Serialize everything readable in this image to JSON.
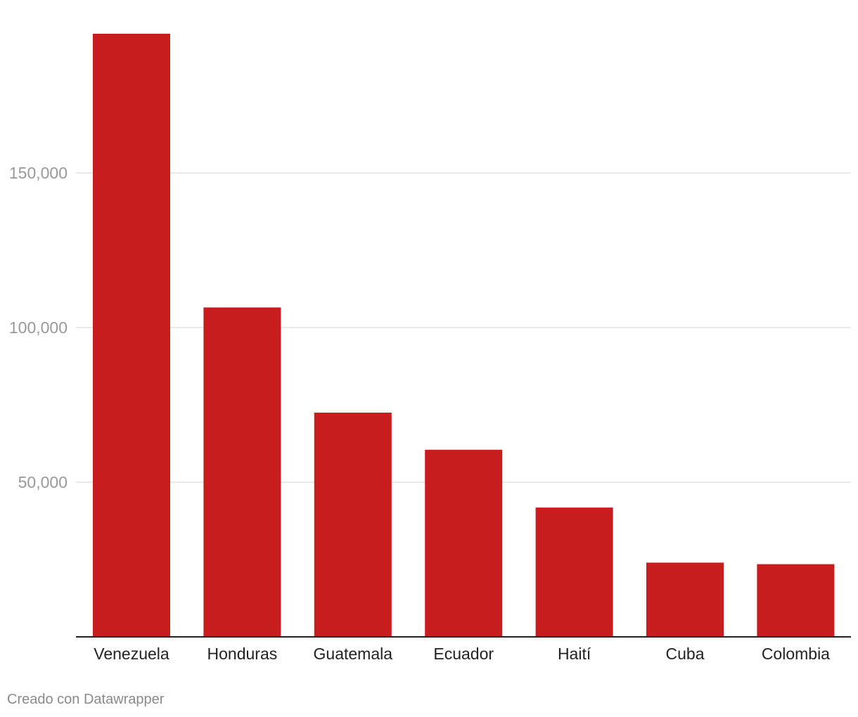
{
  "chart_data": {
    "type": "bar",
    "categories": [
      "Venezuela",
      "Honduras",
      "Guatemala",
      "Ecuador",
      "Haití",
      "Cuba",
      "Colombia"
    ],
    "values": [
      195000,
      106500,
      72500,
      60500,
      41800,
      24000,
      23500
    ],
    "ylim": [
      0,
      195000
    ],
    "yticks": [
      50000,
      100000,
      150000
    ],
    "ytick_labels": [
      "50,000",
      "100,000",
      "150,000"
    ],
    "grid": true,
    "colors": {
      "bar": "#c81d1e",
      "grid": "#e3e3e3",
      "axis": "#222222",
      "tick_label": "#999999",
      "category_label": "#222222"
    }
  },
  "credit": "Creado con Datawrapper"
}
